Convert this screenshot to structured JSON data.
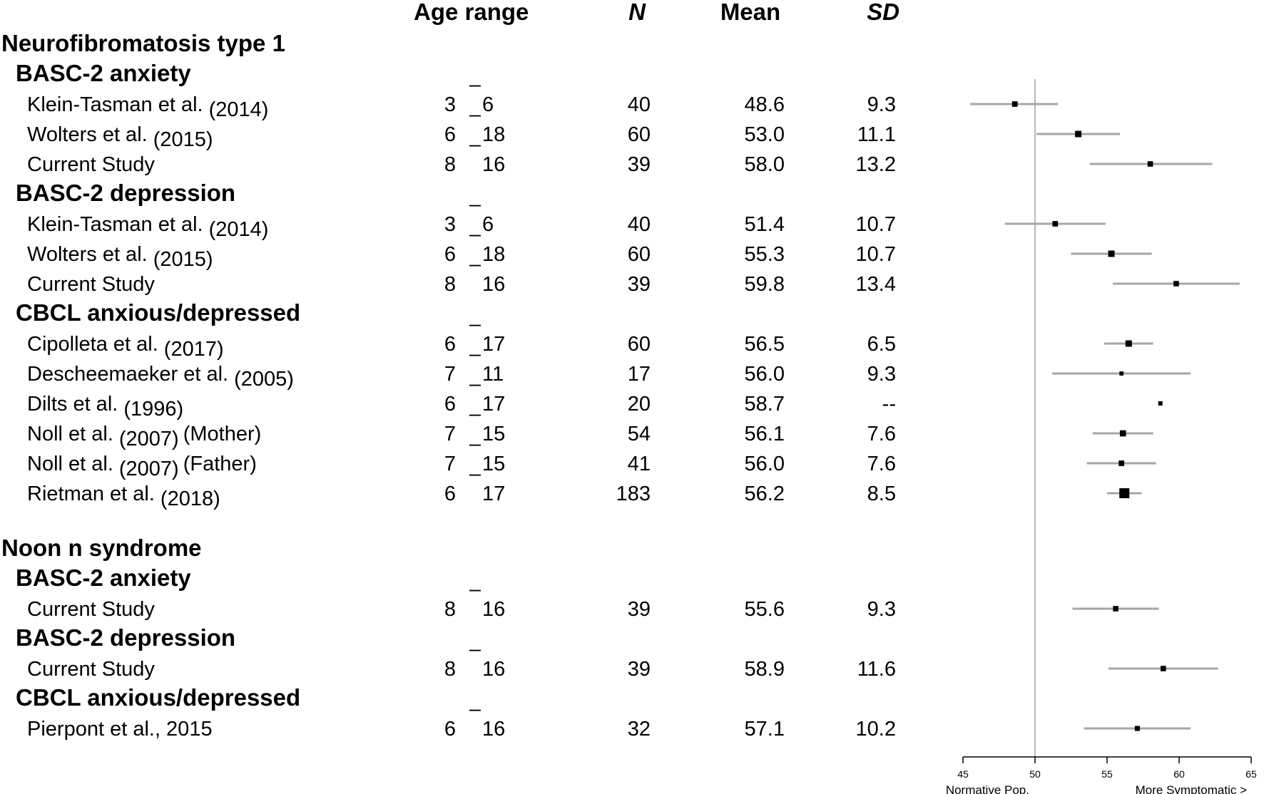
{
  "chart_data": {
    "type": "forest",
    "columns": [
      "Age range",
      "N",
      "Mean",
      "SD"
    ],
    "reference_line": 50,
    "xlim": [
      45,
      65
    ],
    "xticks": [
      45,
      50,
      55,
      60,
      65
    ],
    "axis_note_left": "Normative Pop.",
    "axis_note_right": "More Symptomatic >",
    "groups": [
      {
        "name": "Neurofibromatosis type 1",
        "measures": [
          {
            "name": "BASC-2 anxiety",
            "studies": [
              {
                "label": "Klein-Tasman et al.",
                "year": "(2014)",
                "extra": "",
                "age_lo": "3",
                "age_hi": "6",
                "n": "40",
                "mean": "48.6",
                "sd": "9.3",
                "ci": [
                  45.5,
                  51.6
                ]
              },
              {
                "label": "Wolters et al.",
                "year": "(2015)",
                "extra": "",
                "age_lo": "6",
                "age_hi": "18",
                "n": "60",
                "mean": "53.0",
                "sd": "11.1",
                "ci": [
                  50.1,
                  55.9
                ]
              },
              {
                "label": "Current Study",
                "year": "",
                "extra": "",
                "age_lo": "8",
                "age_hi": "16",
                "n": "39",
                "mean": "58.0",
                "sd": "13.2",
                "ci": [
                  53.8,
                  62.3
                ]
              }
            ]
          },
          {
            "name": "BASC-2 depression",
            "studies": [
              {
                "label": "Klein-Tasman et al.",
                "year": "(2014)",
                "extra": "",
                "age_lo": "3",
                "age_hi": "6",
                "n": "40",
                "mean": "51.4",
                "sd": "10.7",
                "ci": [
                  47.9,
                  54.9
                ]
              },
              {
                "label": "Wolters et al.",
                "year": "(2015)",
                "extra": "",
                "age_lo": "6",
                "age_hi": "18",
                "n": "60",
                "mean": "55.3",
                "sd": "10.7",
                "ci": [
                  52.5,
                  58.1
                ]
              },
              {
                "label": "Current Study",
                "year": "",
                "extra": "",
                "age_lo": "8",
                "age_hi": "16",
                "n": "39",
                "mean": "59.8",
                "sd": "13.4",
                "ci": [
                  55.4,
                  64.2
                ]
              }
            ]
          },
          {
            "name": "CBCL  anxious/depressed",
            "studies": [
              {
                "label": "Cipolleta et al.",
                "year": "(2017)",
                "extra": "",
                "age_lo": "6",
                "age_hi": "17",
                "n": "60",
                "mean": "56.5",
                "sd": "6.5",
                "ci": [
                  54.8,
                  58.2
                ]
              },
              {
                "label": "Descheemaeker et al.",
                "year": "(2005)",
                "extra": "",
                "age_lo": "7",
                "age_hi": "11",
                "n": "17",
                "mean": "56.0",
                "sd": "9.3",
                "ci": [
                  51.2,
                  60.8
                ]
              },
              {
                "label": "Dilts et al.",
                "year": "(1996)",
                "extra": "",
                "age_lo": "6",
                "age_hi": "17",
                "n": "20",
                "mean": "58.7",
                "sd": "--",
                "ci": null
              },
              {
                "label": "Noll et al.",
                "year": "(2007)",
                "extra": "(Mother)",
                "age_lo": "7",
                "age_hi": "15",
                "n": "54",
                "mean": "56.1",
                "sd": "7.6",
                "ci": [
                  54.0,
                  58.2
                ]
              },
              {
                "label": "Noll et al.",
                "year": "(2007)",
                "extra": "(Father)",
                "age_lo": "7",
                "age_hi": "15",
                "n": "41",
                "mean": "56.0",
                "sd": "7.6",
                "ci": [
                  53.6,
                  58.4
                ]
              },
              {
                "label": "Rietman et al.",
                "year": "(2018)",
                "extra": "",
                "age_lo": "6",
                "age_hi": "17",
                "n": "183",
                "mean": "56.2",
                "sd": "8.5",
                "ci": [
                  55.0,
                  57.4
                ]
              }
            ]
          }
        ]
      },
      {
        "name": "Noon  n syndrome",
        "measures": [
          {
            "name": "BASC-2 anxiety",
            "studies": [
              {
                "label": "Current Study",
                "year": "",
                "extra": "",
                "age_lo": "8",
                "age_hi": "16",
                "n": "39",
                "mean": "55.6",
                "sd": "9.3",
                "ci": [
                  52.6,
                  58.6
                ]
              }
            ]
          },
          {
            "name": "BASC-2 depression",
            "studies": [
              {
                "label": "Current Study",
                "year": "",
                "extra": "",
                "age_lo": "8",
                "age_hi": "16",
                "n": "39",
                "mean": "58.9",
                "sd": "11.6",
                "ci": [
                  55.1,
                  62.7
                ]
              }
            ]
          },
          {
            "name": "CBCL anxious/depressed",
            "studies": [
              {
                "label": "Pierpont et al., 2015",
                "year": "",
                "extra": "",
                "age_lo": "6",
                "age_hi": "16",
                "n": "32",
                "mean": "57.1",
                "sd": "10.2",
                "ci": [
                  53.4,
                  60.8
                ]
              }
            ]
          }
        ]
      }
    ]
  }
}
